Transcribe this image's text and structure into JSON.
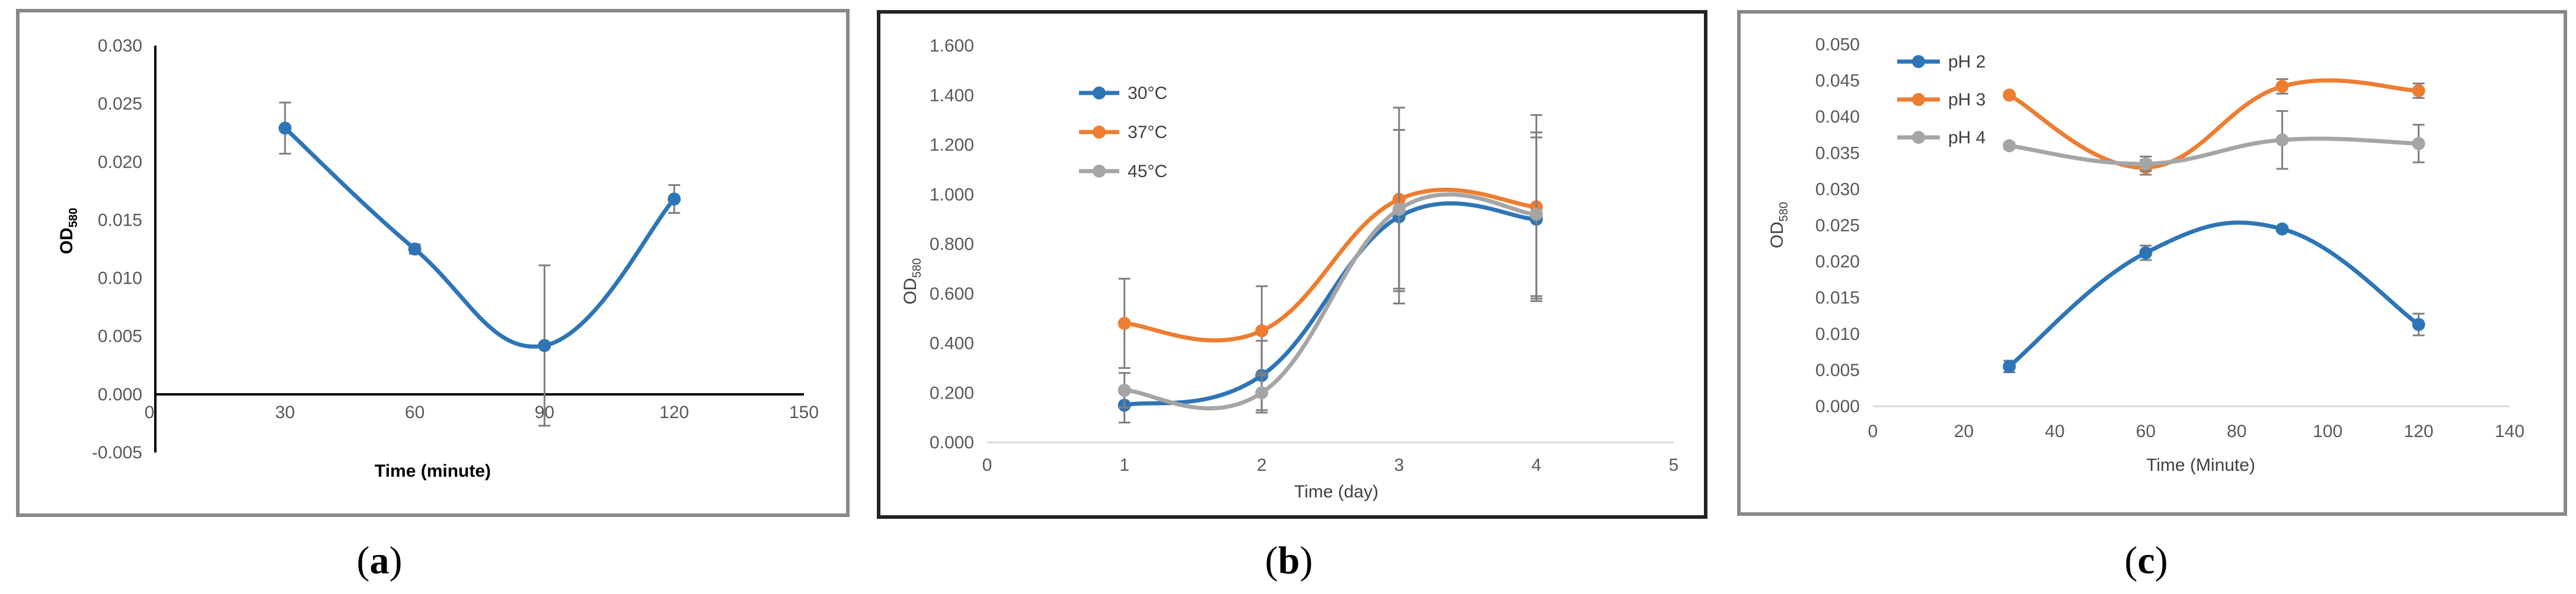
{
  "colors": {
    "blue": "#2E75B6",
    "orange": "#ED7D31",
    "gray": "#A5A5A5",
    "frame": "#888888",
    "errorbar": "#7F7F7F"
  },
  "chart_data": [
    {
      "type": "line",
      "panel": "a",
      "caption": {
        "open": "(",
        "letter": "a",
        "close": ")"
      },
      "title": "",
      "xlabel": "Time (minute)",
      "ylabel": {
        "base": "OD",
        "sub": "580"
      },
      "xlim": [
        0,
        150
      ],
      "ylim": [
        -0.005,
        0.03
      ],
      "xticks": [
        "0",
        "30",
        "60",
        "90",
        "120",
        "150"
      ],
      "yticks": [
        "-0.005",
        "0.000",
        "0.005",
        "0.010",
        "0.015",
        "0.020",
        "0.025",
        "0.030"
      ],
      "xtick_values": [
        0,
        30,
        60,
        90,
        120,
        150
      ],
      "ytick_values": [
        -0.005,
        0.0,
        0.005,
        0.01,
        0.015,
        0.02,
        0.025,
        0.03
      ],
      "legend": [],
      "series": [
        {
          "name": "",
          "color": "blue",
          "x": [
            30,
            60,
            90,
            120
          ],
          "y": [
            0.0229,
            0.0125,
            0.0042,
            0.0168
          ],
          "err": [
            0.0022,
            0.0004,
            0.0069,
            0.0012
          ]
        }
      ]
    },
    {
      "type": "line",
      "panel": "b",
      "caption": {
        "open": "(",
        "letter": "b",
        "close": ")"
      },
      "title": "",
      "xlabel": "Time (day)",
      "ylabel": {
        "base": "OD",
        "sub": "580"
      },
      "xlim": [
        0,
        5
      ],
      "ylim": [
        0,
        1.6
      ],
      "xticks": [
        "0",
        "1",
        "2",
        "3",
        "4",
        "5"
      ],
      "yticks": [
        "0.000",
        "0.200",
        "0.400",
        "0.600",
        "0.800",
        "1.000",
        "1.200",
        "1.400",
        "1.600"
      ],
      "xtick_values": [
        0,
        1,
        2,
        3,
        4,
        5
      ],
      "ytick_values": [
        0,
        0.2,
        0.4,
        0.6,
        0.8,
        1.0,
        1.2,
        1.4,
        1.6
      ],
      "legend": [
        "30°C",
        "37°C",
        "45°C"
      ],
      "series": [
        {
          "name": "30°C",
          "color": "blue",
          "x": [
            1,
            2,
            3,
            4
          ],
          "y": [
            0.15,
            0.27,
            0.91,
            0.9
          ],
          "err": [
            0.07,
            0.14,
            0.35,
            0.33
          ]
        },
        {
          "name": "37°C",
          "color": "orange",
          "x": [
            1,
            2,
            3,
            4
          ],
          "y": [
            0.48,
            0.45,
            0.98,
            0.95
          ],
          "err": [
            0.18,
            0.18,
            0.37,
            0.37
          ]
        },
        {
          "name": "45°C",
          "color": "gray",
          "x": [
            1,
            2,
            3,
            4
          ],
          "y": [
            0.21,
            0.2,
            0.94,
            0.92
          ],
          "err": [
            0.07,
            0.08,
            0.32,
            0.33
          ]
        }
      ]
    },
    {
      "type": "line",
      "panel": "c",
      "caption": {
        "open": "(",
        "letter": "c",
        "close": ")"
      },
      "title": "",
      "xlabel": "Time (Minute)",
      "ylabel": {
        "base": "OD",
        "sub": "580"
      },
      "xlim": [
        0,
        140
      ],
      "ylim": [
        0,
        0.05
      ],
      "xticks": [
        "0",
        "20",
        "40",
        "60",
        "80",
        "100",
        "120",
        "140"
      ],
      "yticks": [
        "0.000",
        "0.005",
        "0.010",
        "0.015",
        "0.020",
        "0.025",
        "0.030",
        "0.035",
        "0.040",
        "0.045",
        "0.050"
      ],
      "xtick_values": [
        0,
        20,
        40,
        60,
        80,
        100,
        120,
        140
      ],
      "ytick_values": [
        0,
        0.005,
        0.01,
        0.015,
        0.02,
        0.025,
        0.03,
        0.035,
        0.04,
        0.045,
        0.05
      ],
      "legend": [
        "pH 2",
        "pH 3",
        "pH 4"
      ],
      "series": [
        {
          "name": "pH 2",
          "color": "blue",
          "x": [
            30,
            60,
            90,
            120
          ],
          "y": [
            0.0055,
            0.0212,
            0.0245,
            0.0113
          ],
          "err": [
            0.0008,
            0.001,
            0.0003,
            0.0015
          ]
        },
        {
          "name": "pH 3",
          "color": "orange",
          "x": [
            30,
            60,
            90,
            120
          ],
          "y": [
            0.043,
            0.033,
            0.0442,
            0.0436
          ],
          "err": [
            0.0003,
            0.001,
            0.001,
            0.001
          ]
        },
        {
          "name": "pH 4",
          "color": "gray",
          "x": [
            30,
            60,
            90,
            120
          ],
          "y": [
            0.036,
            0.0335,
            0.0368,
            0.0363
          ],
          "err": [
            0.0004,
            0.001,
            0.004,
            0.0026
          ]
        }
      ]
    }
  ]
}
